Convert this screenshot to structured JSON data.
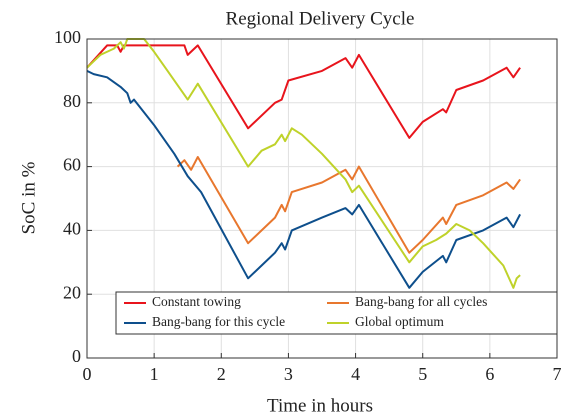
{
  "chart_data": {
    "type": "line",
    "title": "Regional Delivery Cycle",
    "xlabel": "Time in hours",
    "ylabel": "SoC in %",
    "xlim": [
      0,
      7
    ],
    "xticks": [
      0,
      1,
      2,
      3,
      4,
      5,
      6,
      7
    ],
    "ylim": [
      0,
      100
    ],
    "yticks": [
      0,
      20,
      40,
      60,
      80,
      100
    ],
    "grid": true,
    "legend": "lower center",
    "series": [
      {
        "name": "Constant towing",
        "color": "#e8141c",
        "x": [
          0,
          0.3,
          0.45,
          0.5,
          0.55,
          1.45,
          1.5,
          1.65,
          2.4,
          2.8,
          2.9,
          3.0,
          3.5,
          3.85,
          3.95,
          4.05,
          4.8,
          5.0,
          5.3,
          5.35,
          5.5,
          5.9,
          6.25,
          6.35,
          6.45
        ],
        "values": [
          91,
          98,
          98,
          96,
          98,
          98,
          95,
          98,
          72,
          80,
          81,
          87,
          90,
          94,
          91,
          95,
          69,
          74,
          78,
          77,
          84,
          87,
          91,
          88,
          91
        ]
      },
      {
        "name": "Bang-bang for all cycles",
        "color": "#e8772e",
        "x": [
          1.35,
          1.45,
          1.55,
          1.65,
          2.4,
          2.6,
          2.8,
          2.9,
          2.95,
          3.05,
          3.5,
          3.85,
          3.95,
          4.05,
          4.8,
          5.0,
          5.3,
          5.35,
          5.5,
          5.9,
          6.25,
          6.35,
          6.45
        ],
        "values": [
          60,
          62,
          59,
          63,
          36,
          40,
          44,
          48,
          46,
          52,
          55,
          59,
          56,
          60,
          33,
          37,
          44,
          42,
          48,
          51,
          55,
          53,
          56
        ]
      },
      {
        "name": "Bang-bang for this cycle",
        "color": "#0e4f8c",
        "x": [
          0,
          0.1,
          0.3,
          0.5,
          0.6,
          0.65,
          0.7,
          1.0,
          1.3,
          1.5,
          1.7,
          2.4,
          2.6,
          2.8,
          2.9,
          2.95,
          3.05,
          3.5,
          3.85,
          3.95,
          4.05,
          4.8,
          5.0,
          5.3,
          5.35,
          5.5,
          5.9,
          6.25,
          6.35,
          6.45
        ],
        "values": [
          90,
          89,
          88,
          85,
          83,
          80,
          81,
          73,
          64,
          57,
          52,
          25,
          29,
          33,
          36,
          34,
          40,
          44,
          47,
          45,
          48,
          22,
          27,
          32,
          30,
          37,
          40,
          44,
          41,
          45
        ]
      },
      {
        "name": "Global optimum",
        "color": "#bfd22a",
        "x": [
          0,
          0.2,
          0.4,
          0.5,
          0.55,
          0.6,
          0.85,
          1.0,
          1.2,
          1.5,
          1.65,
          2.4,
          2.6,
          2.8,
          2.9,
          2.95,
          3.05,
          3.2,
          3.5,
          3.85,
          3.95,
          4.05,
          4.8,
          5.0,
          5.2,
          5.35,
          5.5,
          5.7,
          5.9,
          6.2,
          6.35,
          6.4,
          6.45
        ],
        "values": [
          91,
          95,
          97,
          99,
          97,
          100,
          100,
          96,
          90,
          81,
          86,
          60,
          65,
          67,
          70,
          68,
          72,
          70,
          64,
          56,
          52,
          54,
          30,
          35,
          37,
          39,
          42,
          40,
          36,
          29,
          22,
          25,
          26
        ]
      }
    ]
  }
}
